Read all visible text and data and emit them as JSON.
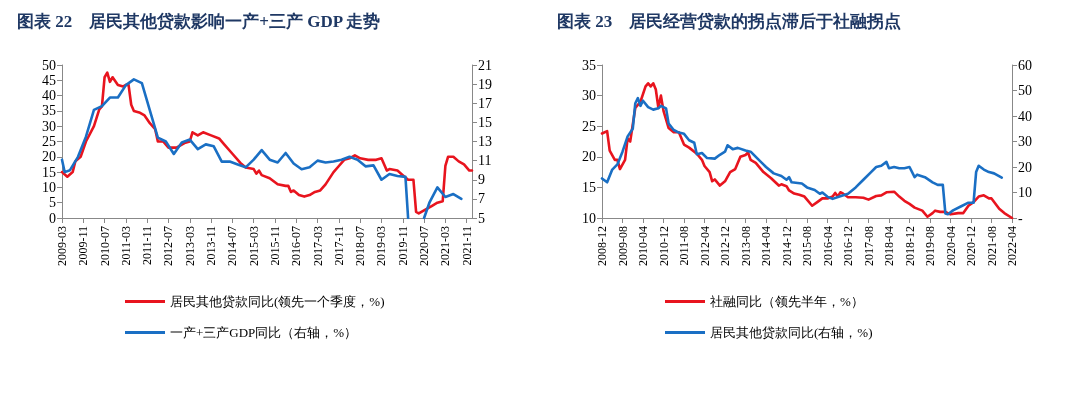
{
  "chart_data": [
    {
      "type": "line",
      "title": "图表 22　居民其他贷款影响一产+三产 GDP 走势",
      "xlim": [
        "2009-03",
        "2022-01"
      ],
      "xticks": [
        "2009-03",
        "2009-11",
        "2010-07",
        "2011-03",
        "2011-11",
        "2012-07",
        "2013-03",
        "2013-11",
        "2014-07",
        "2015-03",
        "2015-11",
        "2016-07",
        "2017-03",
        "2017-11",
        "2018-07",
        "2019-03",
        "2019-11",
        "2020-07",
        "2021-03",
        "2021-11"
      ],
      "ylim": [
        0,
        50
      ],
      "yticks": [
        0,
        5,
        10,
        15,
        20,
        25,
        30,
        35,
        40,
        45,
        50
      ],
      "y2lim": [
        5,
        21
      ],
      "y2ticks": [
        5,
        7,
        9,
        11,
        13,
        15,
        17,
        19,
        21
      ],
      "grid": false,
      "legend": "bottom",
      "marker": "none",
      "line_style": "solid",
      "series": [
        {
          "name": "居民其他贷款同比(领先一个季度，%)",
          "color": "#e8141e",
          "x": [
            "2009-03",
            "2009-05",
            "2009-07",
            "2009-08",
            "2009-10",
            "2009-12",
            "2010-03",
            "2010-05",
            "2010-06",
            "2010-07",
            "2010-08",
            "2010-09",
            "2010-10",
            "2010-12",
            "2011-02",
            "2011-03",
            "2011-04",
            "2011-05",
            "2011-06",
            "2011-08",
            "2011-10",
            "2011-12",
            "2012-02",
            "2012-03",
            "2012-05",
            "2012-07",
            "2012-10",
            "2013-01",
            "2013-03",
            "2013-04",
            "2013-06",
            "2013-08",
            "2013-11",
            "2014-02",
            "2014-04",
            "2014-07",
            "2014-10",
            "2014-12",
            "2015-03",
            "2015-04",
            "2015-05",
            "2015-06",
            "2015-09",
            "2015-12",
            "2016-03",
            "2016-04",
            "2016-05",
            "2016-06",
            "2016-08",
            "2016-10",
            "2016-12",
            "2017-02",
            "2017-04",
            "2017-06",
            "2017-09",
            "2017-11",
            "2018-01",
            "2018-03",
            "2018-05",
            "2018-07",
            "2018-10",
            "2019-01",
            "2019-03",
            "2019-05",
            "2019-06",
            "2019-09",
            "2019-11",
            "2020-01",
            "2020-03",
            "2020-04",
            "2020-05",
            "2020-07",
            "2020-10",
            "2020-12",
            "2021-02",
            "2021-03",
            "2021-04",
            "2021-06",
            "2021-08",
            "2021-10",
            "2021-12",
            "2022-01"
          ],
          "values": [
            15,
            13.5,
            15,
            18.5,
            20,
            25,
            30,
            35.5,
            36.5,
            46,
            47.5,
            44.5,
            46,
            43.5,
            43,
            43.5,
            43.5,
            37,
            35,
            34.5,
            33.5,
            31,
            29,
            25,
            25,
            23,
            23,
            24.5,
            25,
            28,
            27,
            28,
            27,
            26,
            24,
            21,
            18,
            16.5,
            16,
            14.5,
            15.5,
            14,
            13,
            11,
            10.5,
            10.5,
            8.5,
            9,
            7.5,
            7,
            7.5,
            8.5,
            9,
            11,
            15,
            17,
            19,
            19.5,
            20.5,
            19.5,
            19,
            19,
            19.5,
            15.5,
            16,
            15.5,
            14,
            12.5,
            12.5,
            2,
            1.5,
            2.5,
            4,
            5,
            5.5,
            17,
            20,
            20,
            18.5,
            17.5,
            15.5,
            15.5
          ]
        },
        {
          "name": "一产+三产GDP同比（右轴，%）",
          "color": "#1a6fc4",
          "axis": "y2",
          "x": [
            "2009-03",
            "2009-04",
            "2009-06",
            "2009-09",
            "2009-12",
            "2010-03",
            "2010-06",
            "2010-09",
            "2010-12",
            "2011-03",
            "2011-06",
            "2011-09",
            "2012-03",
            "2012-06",
            "2012-09",
            "2012-12",
            "2013-03",
            "2013-06",
            "2013-09",
            "2013-12",
            "2014-03",
            "2014-06",
            "2014-09",
            "2014-12",
            "2015-03",
            "2015-06",
            "2015-09",
            "2015-12",
            "2016-03",
            "2016-06",
            "2016-09",
            "2016-12",
            "2017-03",
            "2017-06",
            "2017-09",
            "2017-12",
            "2018-03",
            "2018-06",
            "2018-09",
            "2018-12",
            "2019-03",
            "2019-06",
            "2019-09",
            "2019-12",
            "2020-01",
            "2020-04",
            "2020-07",
            "2020-09",
            "2020-12",
            "2021-03",
            "2021-06",
            "2021-09"
          ],
          "values": [
            11.1,
            9.8,
            10,
            11.4,
            13.5,
            16.3,
            16.7,
            17.6,
            17.6,
            18.9,
            19.5,
            19.1,
            13.4,
            13,
            11.7,
            12.9,
            13.2,
            12.2,
            12.7,
            12.5,
            10.9,
            10.9,
            10.6,
            10.3,
            11.1,
            12.1,
            11.1,
            10.8,
            11.8,
            10.7,
            10.1,
            10.3,
            11,
            10.8,
            10.9,
            11.1,
            11.4,
            11.1,
            10.4,
            10.5,
            9,
            9.6,
            9.4,
            9.3,
            5,
            null,
            5,
            6.6,
            8.2,
            7.2,
            7.5,
            7
          ]
        }
      ]
    },
    {
      "type": "line",
      "title": "图表 23　居民经营贷款的拐点滞后于社融拐点",
      "xlim": [
        "2008-12",
        "2022-04"
      ],
      "xticks": [
        "2008-12",
        "2009-08",
        "2010-04",
        "2010-12",
        "2011-08",
        "2012-04",
        "2012-12",
        "2013-08",
        "2014-04",
        "2014-12",
        "2015-08",
        "2016-04",
        "2016-12",
        "2017-08",
        "2018-04",
        "2018-12",
        "2019-08",
        "2020-04",
        "2020-12",
        "2021-08",
        "2022-04"
      ],
      "ylim": [
        10,
        35
      ],
      "yticks": [
        10,
        15,
        20,
        25,
        30,
        35
      ],
      "y2lim": [
        0,
        60
      ],
      "y2ticks": [
        {
          "value": 0,
          "label": "-"
        },
        10,
        20,
        30,
        40,
        50,
        60
      ],
      "grid": false,
      "legend": "bottom",
      "marker": "none",
      "line_style": "solid",
      "series": [
        {
          "name": "社融同比（领先半年，%）",
          "color": "#e8141e",
          "x": [
            "2008-12",
            "2009-02",
            "2009-03",
            "2009-05",
            "2009-06",
            "2009-07",
            "2009-09",
            "2009-10",
            "2009-11",
            "2010-01",
            "2010-03",
            "2010-05",
            "2010-06",
            "2010-07",
            "2010-08",
            "2010-09",
            "2010-10",
            "2010-11",
            "2010-12",
            "2011-02",
            "2011-04",
            "2011-06",
            "2011-08",
            "2011-10",
            "2012-01",
            "2012-03",
            "2012-04",
            "2012-06",
            "2012-07",
            "2012-08",
            "2012-10",
            "2012-12",
            "2013-02",
            "2013-04",
            "2013-06",
            "2013-08",
            "2013-09",
            "2013-10",
            "2013-12",
            "2014-03",
            "2014-06",
            "2014-09",
            "2014-10",
            "2014-12",
            "2015-01",
            "2015-03",
            "2015-05",
            "2015-07",
            "2015-08",
            "2015-10",
            "2015-12",
            "2016-02",
            "2016-04",
            "2016-06",
            "2016-07",
            "2016-08",
            "2016-09",
            "2016-10",
            "2016-12",
            "2017-03",
            "2017-06",
            "2017-08",
            "2017-11",
            "2018-01",
            "2018-03",
            "2018-06",
            "2018-08",
            "2018-10",
            "2018-12",
            "2019-02",
            "2019-05",
            "2019-07",
            "2019-09",
            "2019-10",
            "2019-12",
            "2020-02",
            "2020-04",
            "2020-07",
            "2020-09",
            "2020-11",
            "2021-01",
            "2021-03",
            "2021-05",
            "2021-07",
            "2021-08",
            "2021-11",
            "2022-01",
            "2022-04"
          ],
          "values": [
            23.8,
            24.2,
            21,
            19.5,
            19.5,
            18,
            19.5,
            23,
            22.5,
            28,
            29,
            31.5,
            32,
            31.5,
            32,
            31,
            28,
            30,
            27.5,
            24.7,
            24,
            24,
            22,
            21.5,
            20.5,
            19.5,
            18.5,
            17.5,
            16,
            16.3,
            15.3,
            16,
            17.5,
            18,
            20,
            20.3,
            20.7,
            19.5,
            19,
            17.5,
            16.5,
            15.3,
            15.5,
            15.2,
            14.5,
            14,
            13.8,
            13.5,
            13,
            12,
            12.6,
            13.2,
            13.2,
            13.5,
            14.1,
            13.5,
            14.2,
            14,
            13.4,
            13.4,
            13.3,
            13,
            13.6,
            13.7,
            14.2,
            14.3,
            13.5,
            12.8,
            12.3,
            11.7,
            11.2,
            10.2,
            10.8,
            11.2,
            11,
            11,
            10.6,
            10.8,
            10.8,
            12,
            12.6,
            13.5,
            13.7,
            13.2,
            13.2,
            11.5,
            10.8,
            10
          ]
        },
        {
          "name": "居民其他贷款同比(右轴，%)",
          "color": "#1a6fc4",
          "axis": "y2",
          "x": [
            "2008-12",
            "2009-02",
            "2009-04",
            "2009-06",
            "2009-08",
            "2009-10",
            "2009-12",
            "2010-01",
            "2010-02",
            "2010-03",
            "2010-04",
            "2010-06",
            "2010-08",
            "2010-10",
            "2010-11",
            "2011-01",
            "2011-02",
            "2011-04",
            "2011-06",
            "2011-08",
            "2011-10",
            "2011-12",
            "2012-01",
            "2012-03",
            "2012-05",
            "2012-08",
            "2012-10",
            "2012-12",
            "2013-01",
            "2013-03",
            "2013-05",
            "2013-08",
            "2013-10",
            "2014-01",
            "2014-04",
            "2014-07",
            "2014-10",
            "2014-12",
            "2015-01",
            "2015-02",
            "2015-06",
            "2015-08",
            "2015-11",
            "2016-01",
            "2016-02",
            "2016-04",
            "2016-06",
            "2016-09",
            "2016-12",
            "2017-03",
            "2017-06",
            "2017-09",
            "2017-11",
            "2018-01",
            "2018-03",
            "2018-04",
            "2018-06",
            "2018-08",
            "2018-10",
            "2018-12",
            "2019-02",
            "2019-03",
            "2019-06",
            "2019-09",
            "2019-11",
            "2020-01",
            "2020-02",
            "2020-03",
            "2020-05",
            "2020-08",
            "2020-11",
            "2021-01",
            "2021-02",
            "2021-03",
            "2021-05",
            "2021-07",
            "2021-09",
            "2021-12"
          ],
          "values": [
            15.5,
            14,
            19,
            21,
            26,
            32,
            35,
            45,
            47,
            44,
            46,
            43.5,
            42.5,
            43,
            44,
            43,
            37,
            34.5,
            33.5,
            33,
            30.5,
            29.5,
            25,
            25.5,
            23.5,
            23.3,
            24.8,
            26,
            28.5,
            27,
            27.5,
            26.5,
            26,
            23,
            20,
            17.5,
            16.5,
            15,
            16,
            14,
            13.5,
            12,
            11,
            9.5,
            10,
            8.3,
            7.5,
            8.5,
            9.5,
            12,
            15,
            18,
            20,
            20.5,
            22,
            19.5,
            20,
            19.5,
            19.5,
            20,
            16,
            17,
            16,
            14,
            13,
            13,
            1.8,
            1.5,
            3,
            4.5,
            6,
            6,
            18,
            20.5,
            19,
            18,
            17.5,
            15.8
          ]
        }
      ]
    }
  ]
}
